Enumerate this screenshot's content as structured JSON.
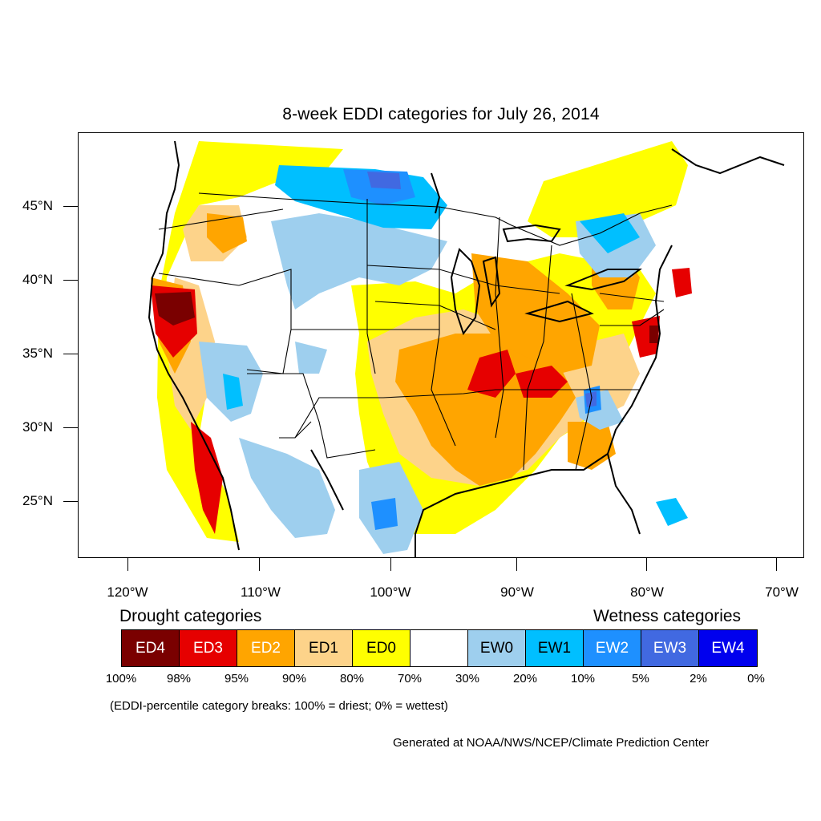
{
  "title": "8-week EDDI categories for July 26, 2014",
  "axes": {
    "lat_labels": [
      "45°N",
      "40°N",
      "35°N",
      "30°N",
      "25°N"
    ],
    "lon_labels": [
      "120°W",
      "110°W",
      "100°W",
      "90°W",
      "80°W",
      "70°W"
    ]
  },
  "legend": {
    "drought_header": "Drought categories",
    "wetness_header": "Wetness categories",
    "categories": [
      {
        "label": "ED4",
        "color": "#7a0000",
        "text_color": "#ffffff"
      },
      {
        "label": "ED3",
        "color": "#e60000",
        "text_color": "#ffffff"
      },
      {
        "label": "ED2",
        "color": "#ffa500",
        "text_color": "#ffffff"
      },
      {
        "label": "ED1",
        "color": "#fdd38a",
        "text_color": "#000000"
      },
      {
        "label": "ED0",
        "color": "#ffff00",
        "text_color": "#000000"
      },
      {
        "label": "",
        "color": "#ffffff",
        "text_color": "#000000"
      },
      {
        "label": "EW0",
        "color": "#9ecfee",
        "text_color": "#000000"
      },
      {
        "label": "EW1",
        "color": "#00bfff",
        "text_color": "#000000"
      },
      {
        "label": "EW2",
        "color": "#1e90ff",
        "text_color": "#ffffff"
      },
      {
        "label": "EW3",
        "color": "#4169e1",
        "text_color": "#ffffff"
      },
      {
        "label": "EW4",
        "color": "#0000ee",
        "text_color": "#ffffff"
      }
    ],
    "breaks": [
      "100%",
      "98%",
      "95%",
      "90%",
      "80%",
      "70%",
      "30%",
      "20%",
      "10%",
      "5%",
      "2%",
      "0%"
    ],
    "note": "(EDDI-percentile category breaks: 100% = driest; 0% = wettest)"
  },
  "credit": "Generated at NOAA/NWS/NCEP/Climate Prediction Center"
}
